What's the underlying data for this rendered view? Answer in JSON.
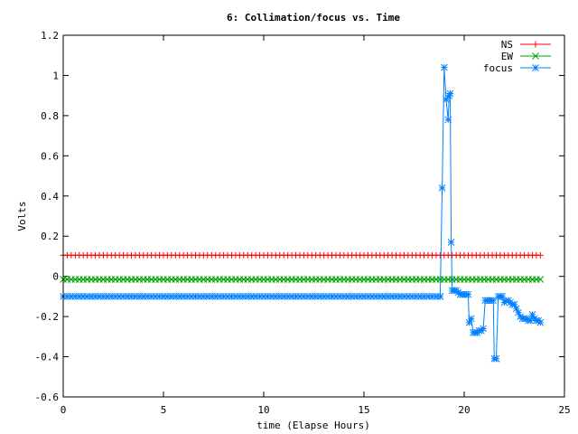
{
  "chart_data": {
    "type": "line",
    "title": "6: Collimation/focus vs. Time",
    "xlabel": "time (Elapse Hours)",
    "ylabel": "Volts",
    "xlim": [
      0,
      25
    ],
    "ylim": [
      -0.6,
      1.2
    ],
    "xticks": [
      0,
      5,
      10,
      15,
      20,
      25
    ],
    "xtick_labels": [
      "0",
      "5",
      "10",
      "15",
      "20",
      "25"
    ],
    "yticks": [
      -0.6,
      -0.4,
      -0.2,
      0,
      0.2,
      0.4,
      0.6,
      0.8,
      1,
      1.2
    ],
    "ytick_labels": [
      "-0.6",
      "-0.4",
      "-0.2",
      "0",
      "0.2",
      "0.4",
      "0.6",
      "0.8",
      "1",
      "1.2"
    ],
    "grid": false,
    "legend_position": "top-right",
    "series": [
      {
        "name": "NS",
        "color": "#ff0000",
        "marker": "plus",
        "constant": 0.105,
        "x_start": 0,
        "x_end": 23.9,
        "x_step": 0.2
      },
      {
        "name": "EW",
        "color": "#00a000",
        "marker": "cross",
        "constant": -0.015,
        "x_start": 0,
        "x_end": 23.9,
        "x_step": 0.2
      },
      {
        "name": "focus",
        "color": "#0080ff",
        "marker": "star",
        "base_value": -0.1,
        "x_start": 0,
        "x_end": 18.8,
        "x_step": 0.2,
        "points": [
          [
            18.8,
            -0.1
          ],
          [
            18.9,
            0.44
          ],
          [
            19.0,
            1.04
          ],
          [
            19.1,
            0.88
          ],
          [
            19.2,
            0.78
          ],
          [
            19.25,
            0.9
          ],
          [
            19.3,
            0.91
          ],
          [
            19.35,
            0.17
          ],
          [
            19.4,
            -0.07
          ],
          [
            19.5,
            -0.07
          ],
          [
            19.6,
            -0.07
          ],
          [
            19.7,
            -0.08
          ],
          [
            19.8,
            -0.09
          ],
          [
            19.9,
            -0.09
          ],
          [
            20.0,
            -0.09
          ],
          [
            20.1,
            -0.09
          ],
          [
            20.2,
            -0.09
          ],
          [
            20.25,
            -0.23
          ],
          [
            20.35,
            -0.21
          ],
          [
            20.45,
            -0.28
          ],
          [
            20.55,
            -0.28
          ],
          [
            20.65,
            -0.28
          ],
          [
            20.75,
            -0.27
          ],
          [
            20.85,
            -0.27
          ],
          [
            20.95,
            -0.26
          ],
          [
            21.05,
            -0.12
          ],
          [
            21.15,
            -0.12
          ],
          [
            21.25,
            -0.12
          ],
          [
            21.35,
            -0.12
          ],
          [
            21.45,
            -0.12
          ],
          [
            21.5,
            -0.41
          ],
          [
            21.6,
            -0.41
          ],
          [
            21.7,
            -0.1
          ],
          [
            21.8,
            -0.1
          ],
          [
            21.9,
            -0.1
          ],
          [
            22.0,
            -0.13
          ],
          [
            22.1,
            -0.12
          ],
          [
            22.2,
            -0.12
          ],
          [
            22.3,
            -0.13
          ],
          [
            22.4,
            -0.14
          ],
          [
            22.5,
            -0.14
          ],
          [
            22.6,
            -0.16
          ],
          [
            22.7,
            -0.18
          ],
          [
            22.8,
            -0.2
          ],
          [
            22.9,
            -0.21
          ],
          [
            23.0,
            -0.21
          ],
          [
            23.1,
            -0.21
          ],
          [
            23.2,
            -0.22
          ],
          [
            23.3,
            -0.22
          ],
          [
            23.4,
            -0.19
          ],
          [
            23.5,
            -0.21
          ],
          [
            23.6,
            -0.22
          ],
          [
            23.7,
            -0.22
          ],
          [
            23.8,
            -0.23
          ]
        ]
      }
    ]
  }
}
